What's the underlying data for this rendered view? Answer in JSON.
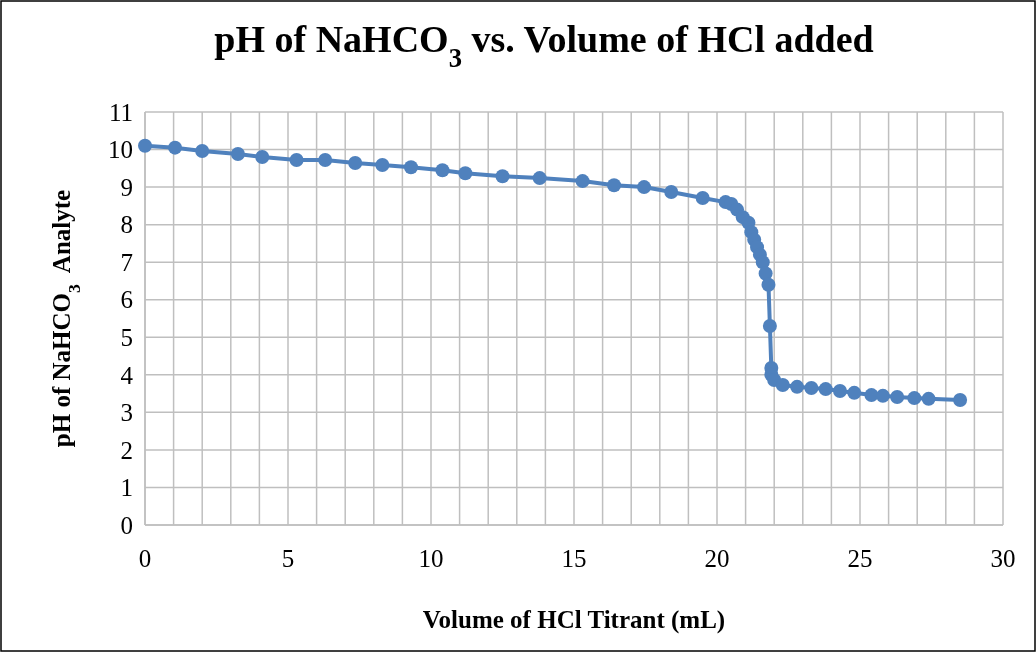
{
  "chart_data": {
    "type": "line",
    "title": "pH of NaHCO$_{3}$ vs. Volume of HCl added",
    "xlabel": "Volume of HCl Titrant (mL)",
    "ylabel": "pH of NaHCO$_{3}$  Analyte",
    "xlim": [
      0,
      30
    ],
    "ylim": [
      0,
      11
    ],
    "xticks": [
      0,
      {
        "value": 1,
        "label": null
      },
      {
        "value": 2,
        "label": null
      },
      {
        "value": 3,
        "label": null
      },
      {
        "value": 4,
        "label": null
      },
      5,
      {
        "value": 6,
        "label": null
      },
      {
        "value": 7,
        "label": null
      },
      {
        "value": 8,
        "label": null
      },
      {
        "value": 9,
        "label": null
      },
      10,
      {
        "value": 11,
        "label": null
      },
      {
        "value": 12,
        "label": null
      },
      {
        "value": 13,
        "label": null
      },
      {
        "value": 14,
        "label": null
      },
      15,
      {
        "value": 16,
        "label": null
      },
      {
        "value": 17,
        "label": null
      },
      {
        "value": 18,
        "label": null
      },
      {
        "value": 19,
        "label": null
      },
      20,
      {
        "value": 21,
        "label": null
      },
      {
        "value": 22,
        "label": null
      },
      {
        "value": 23,
        "label": null
      },
      {
        "value": 24,
        "label": null
      },
      25,
      {
        "value": 26,
        "label": null
      },
      {
        "value": 27,
        "label": null
      },
      {
        "value": 28,
        "label": null
      },
      {
        "value": 29,
        "label": null
      },
      30
    ],
    "yticks": [
      0,
      1,
      2,
      3,
      4,
      5,
      6,
      7,
      8,
      9,
      10,
      11
    ],
    "grid": true,
    "marker": "circle",
    "line_style": "solid",
    "series": [
      {
        "color": "#4f81bd",
        "x": [
          0,
          1.05,
          2.0,
          3.25,
          4.1,
          5.3,
          6.3,
          7.35,
          8.3,
          9.3,
          10.4,
          11.2,
          12.5,
          13.8,
          15.3,
          16.4,
          17.45,
          18.4,
          19.5,
          20.3,
          20.5,
          20.7,
          20.9,
          21.1,
          21.2,
          21.3,
          21.4,
          21.5,
          21.6,
          21.7,
          21.8,
          21.85,
          21.9,
          21.9,
          22.0,
          22.3,
          22.8,
          23.3,
          23.8,
          24.3,
          24.8,
          25.4,
          25.8,
          26.3,
          26.9,
          27.4,
          28.5
        ],
        "values": [
          10.1,
          10.05,
          9.96,
          9.88,
          9.8,
          9.72,
          9.72,
          9.64,
          9.59,
          9.53,
          9.45,
          9.37,
          9.29,
          9.24,
          9.16,
          9.05,
          9.0,
          8.87,
          8.71,
          8.6,
          8.55,
          8.4,
          8.2,
          8.05,
          7.8,
          7.6,
          7.4,
          7.2,
          7.0,
          6.7,
          6.4,
          5.3,
          4.18,
          4.0,
          3.86,
          3.73,
          3.68,
          3.65,
          3.62,
          3.57,
          3.52,
          3.46,
          3.44,
          3.41,
          3.38,
          3.36,
          3.33
        ]
      }
    ]
  }
}
